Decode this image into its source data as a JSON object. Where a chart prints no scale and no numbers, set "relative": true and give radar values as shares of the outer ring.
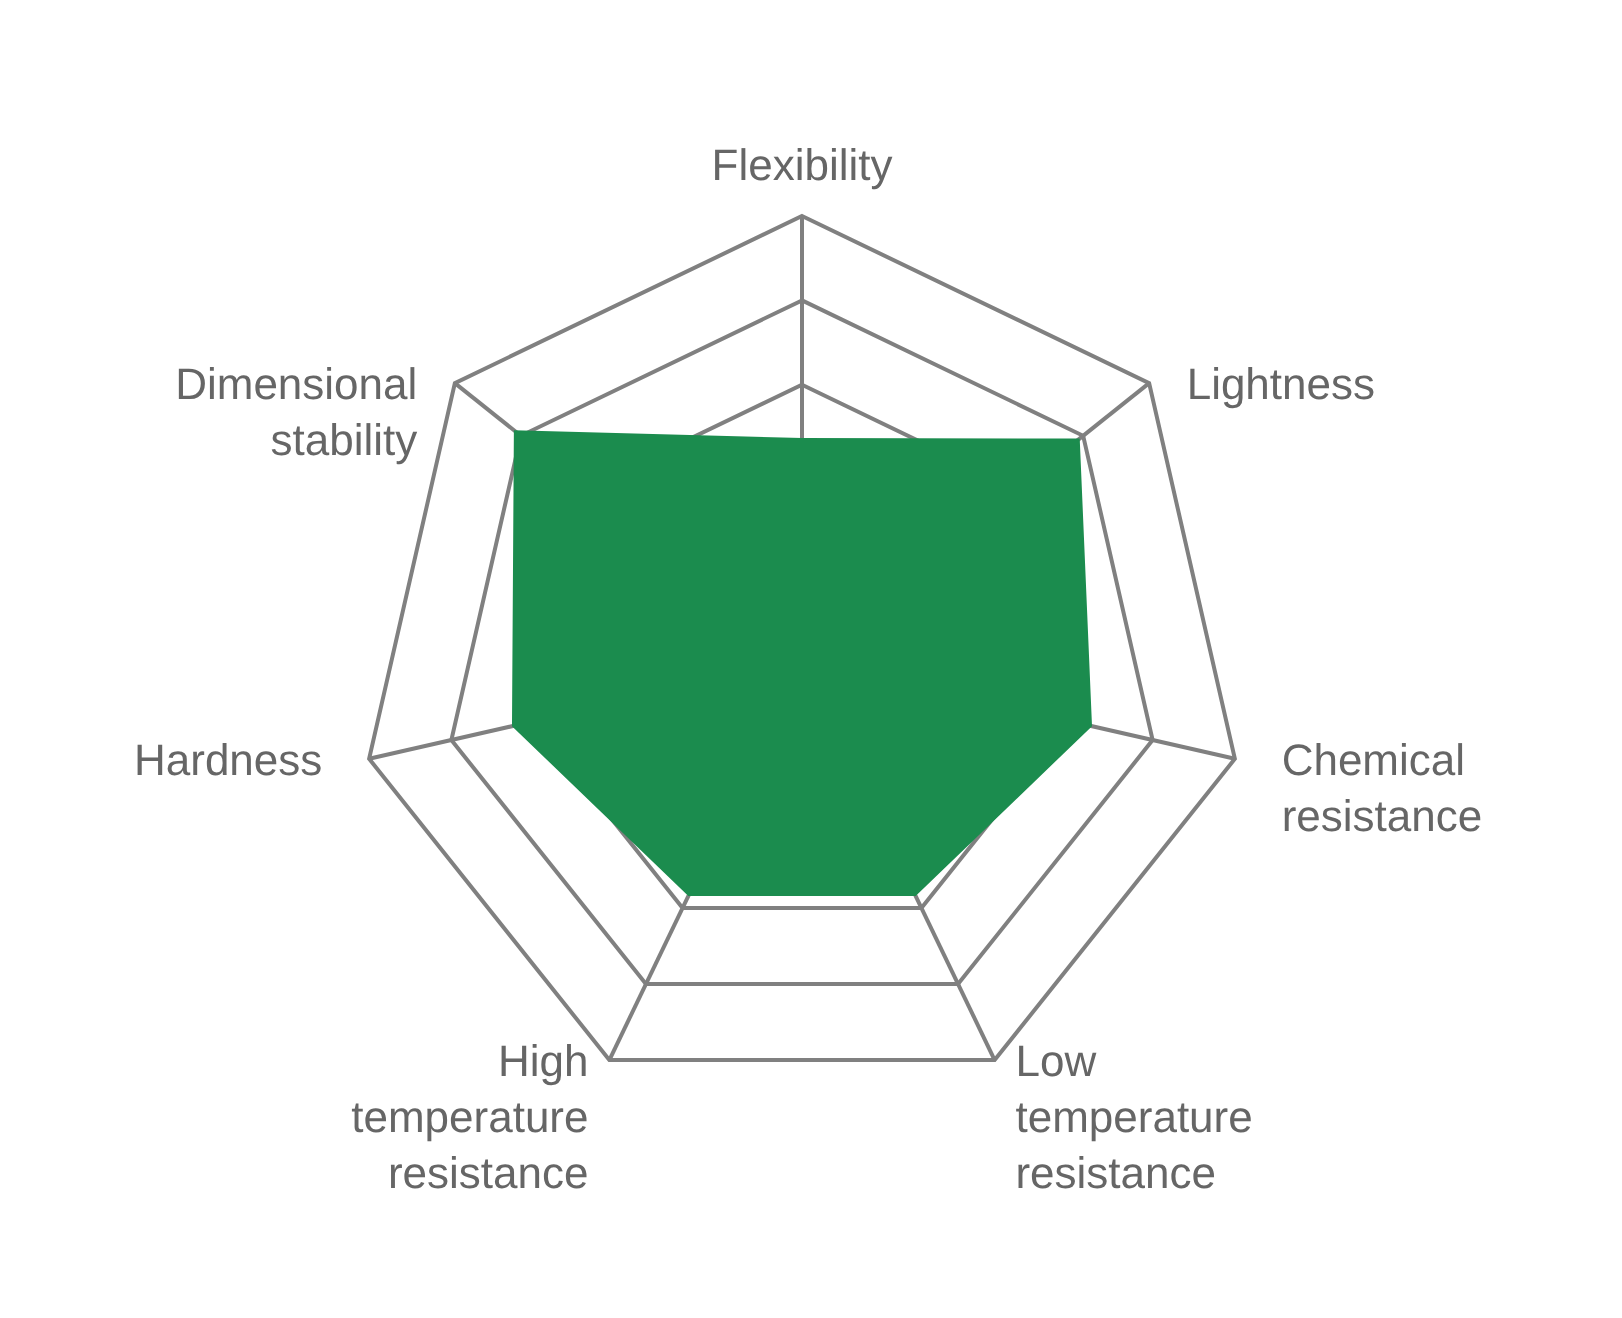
{
  "chart_data": {
    "type": "radar",
    "relative": true,
    "categories": [
      "Flexibility",
      "Lightness",
      "Chemical resistance",
      "Low temperature resistance",
      "High temperature resistance",
      "Hardness",
      "Dimensional stability"
    ],
    "series": [
      {
        "color": "#1b8c4e",
        "values": [
          0.5,
          0.8,
          0.67,
          0.59,
          0.59,
          0.67,
          0.83
        ]
      }
    ]
  }
}
